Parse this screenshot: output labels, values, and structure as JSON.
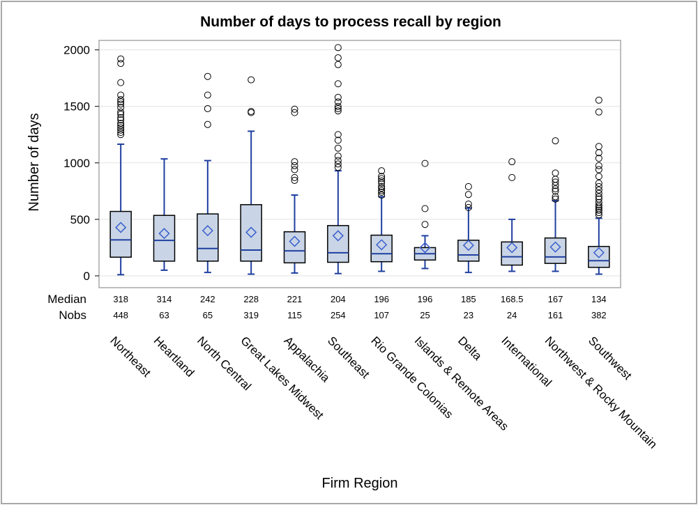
{
  "chart_data": {
    "type": "box",
    "title": "Number of days to process recall by region",
    "xlabel": "Firm Region",
    "ylabel": "Number of days",
    "ylim": [
      -40,
      2060
    ],
    "yticks": [
      0,
      500,
      1000,
      1500,
      2000
    ],
    "grid": true,
    "categories": [
      "Northeast",
      "Heartland",
      "North Central",
      "Great Lakes Midwest",
      "Appalachia",
      "Southeast",
      "Rio Grande Colonias",
      "Islands & Remote Areas",
      "Delta",
      "International",
      "Northwest & Rocky Mountain",
      "Southwest"
    ],
    "stat_labels": [
      "Median",
      "Nobs"
    ],
    "medians": [
      "318",
      "314",
      "242",
      "228",
      "221",
      "204",
      "196",
      "196",
      "185",
      "168.5",
      "167",
      "134"
    ],
    "nobs": [
      "448",
      "63",
      "65",
      "319",
      "115",
      "254",
      "107",
      "25",
      "23",
      "24",
      "161",
      "382"
    ],
    "boxes": [
      {
        "q1": 165,
        "median": 318,
        "q3": 570,
        "mean": 428,
        "whisker_low": 10,
        "whisker_high": 1165,
        "outliers": [
          1920,
          1880,
          1710,
          1600,
          1560,
          1540,
          1520,
          1490,
          1450,
          1430,
          1400,
          1380,
          1350,
          1330,
          1310,
          1290,
          1270,
          1250
        ]
      },
      {
        "q1": 130,
        "median": 314,
        "q3": 535,
        "mean": 375,
        "whisker_low": 50,
        "whisker_high": 1035,
        "outliers": []
      },
      {
        "q1": 130,
        "median": 242,
        "q3": 548,
        "mean": 400,
        "whisker_low": 30,
        "whisker_high": 1020,
        "outliers": [
          1765,
          1600,
          1480,
          1340
        ]
      },
      {
        "q1": 130,
        "median": 228,
        "q3": 630,
        "mean": 385,
        "whisker_low": 15,
        "whisker_high": 1280,
        "outliers": [
          1735,
          1455,
          1445
        ]
      },
      {
        "q1": 115,
        "median": 221,
        "q3": 390,
        "mean": 305,
        "whisker_low": 25,
        "whisker_high": 715,
        "outliers": [
          1475,
          1445,
          1010,
          975,
          940,
          870,
          845
        ]
      },
      {
        "q1": 120,
        "median": 204,
        "q3": 445,
        "mean": 355,
        "whisker_low": 20,
        "whisker_high": 930,
        "outliers": [
          2020,
          1930,
          1870,
          1700,
          1580,
          1540,
          1500,
          1480,
          1460,
          1250,
          1200,
          1130,
          1060,
          1020,
          990,
          960
        ]
      },
      {
        "q1": 125,
        "median": 196,
        "q3": 360,
        "mean": 275,
        "whisker_low": 40,
        "whisker_high": 700,
        "outliers": [
          930,
          880,
          860,
          840,
          820,
          790,
          775,
          755,
          740,
          715
        ]
      },
      {
        "q1": 140,
        "median": 196,
        "q3": 250,
        "mean": 250,
        "whisker_low": 65,
        "whisker_high": 355,
        "outliers": [
          995,
          595,
          455
        ]
      },
      {
        "q1": 130,
        "median": 185,
        "q3": 315,
        "mean": 270,
        "whisker_low": 30,
        "whisker_high": 600,
        "outliers": [
          790,
          720,
          635,
          605
        ]
      },
      {
        "q1": 95,
        "median": 168.5,
        "q3": 300,
        "mean": 250,
        "whisker_low": 40,
        "whisker_high": 500,
        "outliers": [
          1010,
          870
        ]
      },
      {
        "q1": 110,
        "median": 167,
        "q3": 335,
        "mean": 255,
        "whisker_low": 40,
        "whisker_high": 665,
        "outliers": [
          1195,
          910,
          855,
          830,
          800,
          770,
          750,
          700,
          680
        ]
      },
      {
        "q1": 75,
        "median": 134,
        "q3": 260,
        "mean": 205,
        "whisker_low": 15,
        "whisker_high": 510,
        "outliers": [
          1555,
          1450,
          1145,
          1090,
          1040,
          975,
          940,
          880,
          820,
          790,
          760,
          730,
          700,
          680,
          650,
          625,
          610,
          595,
          580,
          560,
          540
        ]
      }
    ],
    "colors": {
      "box_fill": "#c9d5e6",
      "box_stroke": "#000000",
      "line": "#1f3fa0",
      "mean_marker": "#3a5fcd",
      "grid": "#e2e2e2",
      "axis": "#a8a8a8"
    }
  }
}
